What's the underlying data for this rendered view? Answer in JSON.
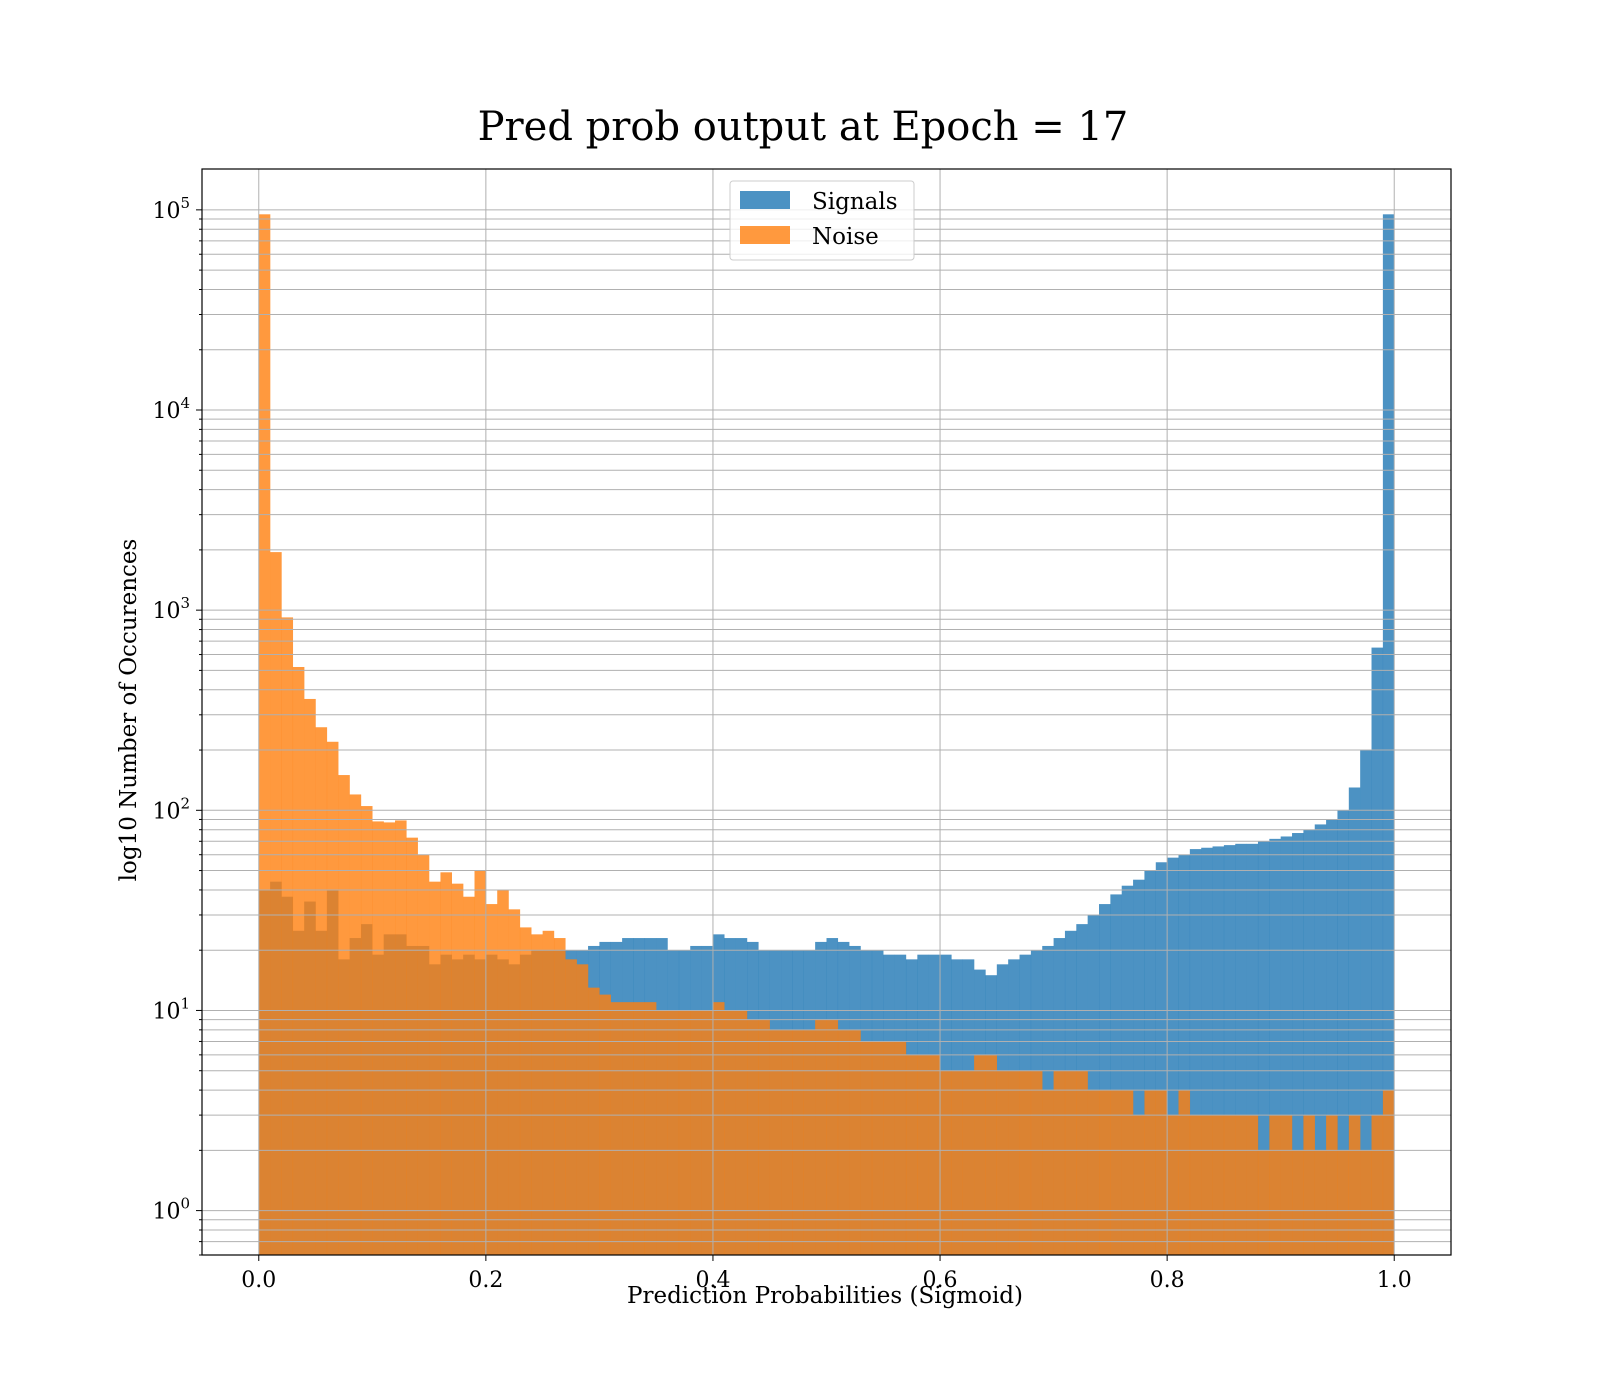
{
  "chart_data": {
    "type": "bar",
    "title": "Pred prob output at Epoch = 17",
    "xlabel": "Prediction Probabilities (Sigmoid)",
    "ylabel": "log10 Number of Occurences",
    "xlim": [
      -0.05,
      1.05
    ],
    "ylim": [
      0.6,
      160000
    ],
    "yscale": "log",
    "grid": true,
    "legend_position": "upper center",
    "x_ticks": [
      0.0,
      0.2,
      0.4,
      0.6,
      0.8,
      1.0
    ],
    "x_tick_labels": [
      "0.0",
      "0.2",
      "0.4",
      "0.6",
      "0.8",
      "1.0"
    ],
    "y_ticks": [
      {
        "value": 1,
        "base": "10",
        "exp": "0"
      },
      {
        "value": 10,
        "base": "10",
        "exp": "1"
      },
      {
        "value": 100,
        "base": "10",
        "exp": "2"
      },
      {
        "value": 1000,
        "base": "10",
        "exp": "3"
      },
      {
        "value": 10000,
        "base": "10",
        "exp": "4"
      },
      {
        "value": 100000,
        "base": "10",
        "exp": "5"
      }
    ],
    "bins": {
      "start": 0.0,
      "end": 1.0,
      "count": 100
    },
    "series": [
      {
        "name": "Signals",
        "color": "#1f77b4",
        "values": [
          40,
          44,
          37,
          25,
          35,
          25,
          40,
          18,
          23,
          27,
          19,
          24,
          24,
          21,
          21,
          17,
          19,
          18,
          19,
          18,
          19,
          18,
          17,
          19,
          20,
          20,
          20,
          20,
          20,
          21,
          22,
          22,
          23,
          23,
          23,
          23,
          20,
          20,
          21,
          21,
          24,
          23,
          23,
          22,
          20,
          20,
          20,
          20,
          20,
          22,
          23,
          22,
          21,
          20,
          20,
          19,
          19,
          18,
          19,
          19,
          19,
          18,
          18,
          16,
          15,
          17,
          18,
          19,
          20,
          21,
          23,
          25,
          27,
          30,
          34,
          38,
          42,
          45,
          50,
          55,
          58,
          60,
          64,
          65,
          66,
          67,
          68,
          68,
          70,
          72,
          74,
          77,
          80,
          85,
          90,
          100,
          130,
          200,
          650,
          95000
        ]
      },
      {
        "name": "Noise",
        "color": "#ff7f0e",
        "values": [
          95000,
          1950,
          920,
          520,
          360,
          260,
          220,
          150,
          120,
          105,
          88,
          87,
          89,
          73,
          60,
          44,
          49,
          43,
          37,
          50,
          34,
          40,
          32,
          26,
          24,
          25,
          23,
          18,
          17,
          13,
          12,
          11,
          11,
          11,
          11,
          10,
          10,
          10,
          10,
          10,
          11,
          10,
          10,
          9,
          9,
          8,
          8,
          8,
          8,
          9,
          9,
          8,
          8,
          7,
          7,
          7,
          7,
          6,
          6,
          6,
          5,
          5,
          5,
          6,
          6,
          5,
          5,
          5,
          5,
          4,
          5,
          5,
          5,
          4,
          4,
          4,
          4,
          3,
          4,
          4,
          3,
          4,
          3,
          3,
          3,
          3,
          3,
          3,
          2,
          3,
          3,
          2,
          3,
          2,
          3,
          2,
          3,
          2,
          3,
          4
        ]
      }
    ]
  }
}
